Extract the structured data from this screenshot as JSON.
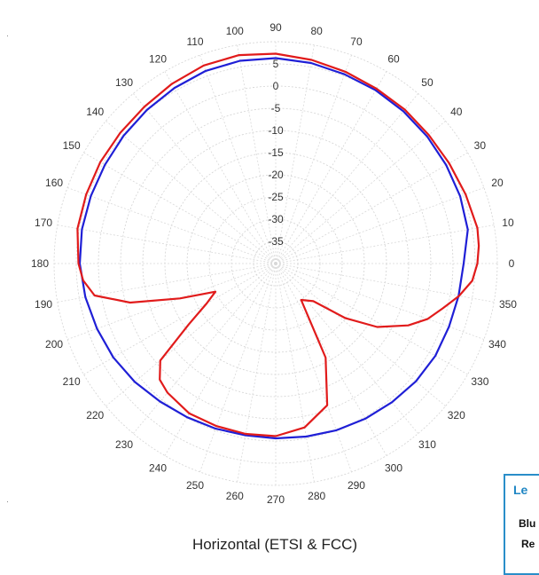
{
  "caption": "Horizontal (ETSI & FCC)",
  "legend": {
    "title": "Le",
    "items": [
      {
        "label": "Blu",
        "color": "#1f1fd6"
      },
      {
        "label": "Re",
        "color": "#e11b1b"
      }
    ]
  },
  "chart_data": {
    "type": "polar",
    "title": "",
    "angular_axis": {
      "unit": "degrees",
      "zero_direction": "east",
      "direction": "counterclockwise",
      "tick_labels": [
        "0",
        "10",
        "20",
        "30",
        "40",
        "50",
        "60",
        "70",
        "80",
        "90",
        "100",
        "110",
        "120",
        "130",
        "140",
        "150",
        "160",
        "170",
        "180",
        "190",
        "200",
        "210",
        "220",
        "230",
        "240",
        "250",
        "260",
        "270",
        "280",
        "290",
        "300",
        "310",
        "320",
        "330",
        "340",
        "350"
      ]
    },
    "radial_axis": {
      "range": [
        -40,
        10
      ],
      "tick_values": [
        5,
        0,
        -5,
        -10,
        -15,
        -20,
        -25,
        -30,
        -35
      ],
      "tick_labels": [
        "5",
        "0",
        "-5",
        "-10",
        "-15",
        "-20",
        "-25",
        "-30",
        "-35"
      ],
      "rings": [
        10,
        5,
        0,
        -5,
        -10,
        -15,
        -20,
        -25,
        -30,
        -35,
        -40
      ]
    },
    "grid": true,
    "series": [
      {
        "name": "Blu",
        "color": "#1f1fd6",
        "points": [
          [
            0,
            2.4
          ],
          [
            10,
            4.0
          ],
          [
            20,
            4.3
          ],
          [
            30,
            4.4
          ],
          [
            40,
            4.6
          ],
          [
            50,
            4.8
          ],
          [
            60,
            5.1
          ],
          [
            70,
            5.4
          ],
          [
            80,
            5.9
          ],
          [
            90,
            6.3
          ],
          [
            100,
            6.4
          ],
          [
            110,
            6.2
          ],
          [
            120,
            5.7
          ],
          [
            130,
            5.2
          ],
          [
            140,
            4.8
          ],
          [
            150,
            4.5
          ],
          [
            160,
            4.4
          ],
          [
            170,
            4.4
          ],
          [
            180,
            4.2
          ],
          [
            190,
            3.6
          ],
          [
            200,
            2.9
          ],
          [
            210,
            2.3
          ],
          [
            220,
            1.5
          ],
          [
            230,
            0.6
          ],
          [
            240,
            0.0
          ],
          [
            250,
            -0.4
          ],
          [
            260,
            -0.7
          ],
          [
            270,
            -0.6
          ],
          [
            280,
            -0.4
          ],
          [
            290,
            0.0
          ],
          [
            300,
            0.4
          ],
          [
            310,
            0.8
          ],
          [
            320,
            1.3
          ],
          [
            330,
            1.6
          ],
          [
            340,
            1.6
          ],
          [
            350,
            1.9
          ],
          [
            360,
            2.4
          ]
        ]
      },
      {
        "name": "Re",
        "color": "#e11b1b",
        "points": [
          [
            0,
            5.5
          ],
          [
            5,
            6.0
          ],
          [
            10,
            6.2
          ],
          [
            20,
            5.6
          ],
          [
            30,
            5.2
          ],
          [
            40,
            5.1
          ],
          [
            50,
            5.3
          ],
          [
            60,
            5.5
          ],
          [
            70,
            6.0
          ],
          [
            80,
            6.6
          ],
          [
            90,
            7.3
          ],
          [
            100,
            7.7
          ],
          [
            110,
            7.5
          ],
          [
            120,
            6.8
          ],
          [
            130,
            6.1
          ],
          [
            140,
            5.8
          ],
          [
            150,
            5.7
          ],
          [
            160,
            5.5
          ],
          [
            170,
            5.4
          ],
          [
            180,
            4.5
          ],
          [
            185,
            3.6
          ],
          [
            190,
            1.5
          ],
          [
            195,
            -6.0
          ],
          [
            200,
            -17.0
          ],
          [
            205,
            -25.0
          ],
          [
            210,
            -22.0
          ],
          [
            215,
            -16.0
          ],
          [
            220,
            -6.0
          ],
          [
            225,
            -3.0
          ],
          [
            230,
            -2.0
          ],
          [
            240,
            -1.0
          ],
          [
            250,
            -1.0
          ],
          [
            260,
            -1.0
          ],
          [
            270,
            -1.1
          ],
          [
            280,
            -2.5
          ],
          [
            290,
            -6.0
          ],
          [
            298,
            -16.0
          ],
          [
            305,
            -30.0
          ],
          [
            315,
            -28.0
          ],
          [
            322,
            -20.0
          ],
          [
            328,
            -13.0
          ],
          [
            335,
            -7.0
          ],
          [
            340,
            -3.5
          ],
          [
            345,
            -1.0
          ],
          [
            350,
            2.0
          ],
          [
            355,
            4.5
          ],
          [
            360,
            5.5
          ]
        ]
      }
    ]
  }
}
